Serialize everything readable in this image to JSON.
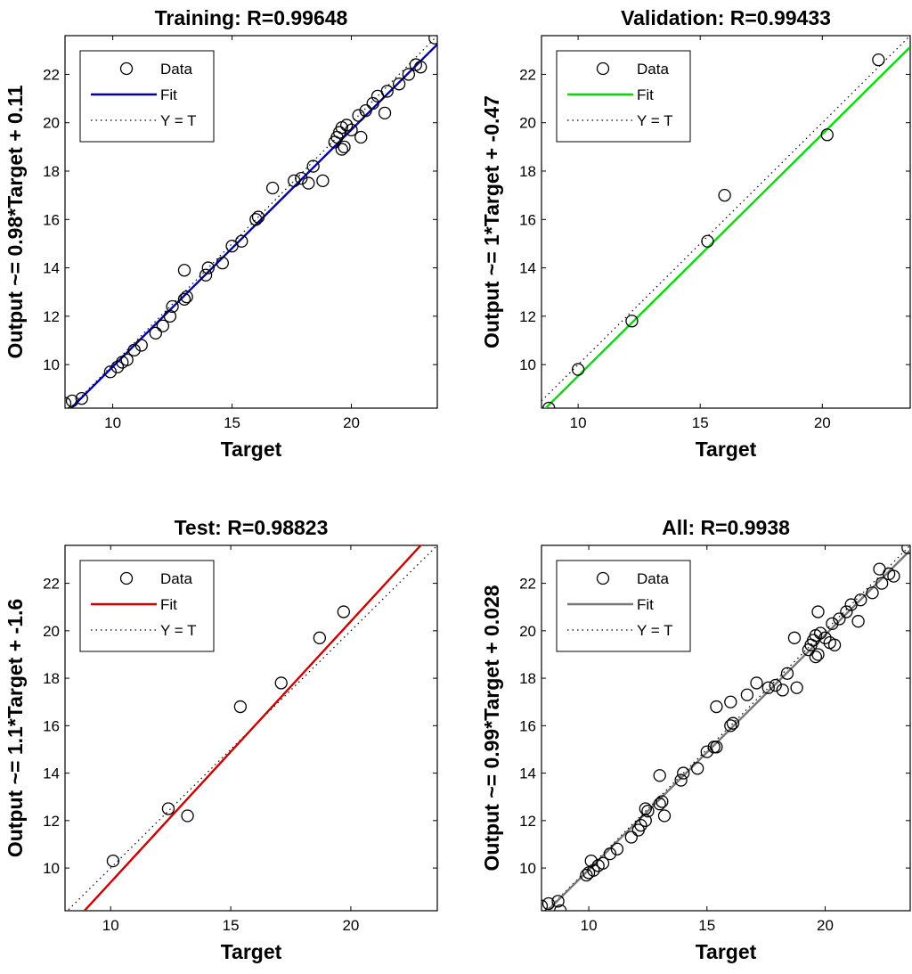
{
  "figure": {
    "colors": {
      "background": "#ffffff",
      "axes": "#000000",
      "marker": "#000000"
    },
    "legend": {
      "data_label": "Data",
      "fit_label": "Fit",
      "identity_label": "Y = T"
    }
  },
  "chart_data": [
    {
      "type": "scatter",
      "title": "Training: R=0.99648",
      "xlabel": "Target",
      "ylabel": "Output ~= 0.98*Target + 0.11",
      "xlim": [
        8,
        23.6
      ],
      "ylim": [
        8.2,
        23.6
      ],
      "xticks": [
        10,
        15,
        20
      ],
      "yticks": [
        10,
        12,
        14,
        16,
        18,
        20,
        22
      ],
      "fit": {
        "slope": 0.98,
        "intercept": 0.11,
        "color": "#0000aa"
      },
      "legend_position": "top-left",
      "grid": false,
      "points": [
        [
          8.0,
          8.4
        ],
        [
          8.3,
          8.5
        ],
        [
          8.7,
          8.6
        ],
        [
          9.9,
          9.7
        ],
        [
          10.2,
          9.9
        ],
        [
          10.4,
          10.1
        ],
        [
          10.6,
          10.2
        ],
        [
          10.9,
          10.6
        ],
        [
          11.2,
          10.8
        ],
        [
          11.8,
          11.3
        ],
        [
          12.1,
          11.6
        ],
        [
          12.4,
          12.0
        ],
        [
          12.5,
          12.4
        ],
        [
          13.0,
          12.7
        ],
        [
          13.1,
          12.8
        ],
        [
          13.0,
          13.9
        ],
        [
          13.9,
          13.7
        ],
        [
          14.0,
          14.0
        ],
        [
          14.6,
          14.2
        ],
        [
          15.0,
          14.9
        ],
        [
          15.4,
          15.1
        ],
        [
          16.0,
          16.0
        ],
        [
          16.1,
          16.1
        ],
        [
          16.7,
          17.3
        ],
        [
          17.6,
          17.6
        ],
        [
          17.9,
          17.7
        ],
        [
          18.2,
          17.5
        ],
        [
          18.4,
          18.2
        ],
        [
          18.8,
          17.6
        ],
        [
          19.3,
          19.2
        ],
        [
          19.4,
          19.4
        ],
        [
          19.5,
          19.6
        ],
        [
          19.6,
          19.8
        ],
        [
          19.7,
          19.0
        ],
        [
          19.6,
          18.9
        ],
        [
          19.8,
          19.9
        ],
        [
          20.0,
          19.7
        ],
        [
          20.3,
          20.3
        ],
        [
          20.4,
          19.4
        ],
        [
          20.6,
          20.5
        ],
        [
          20.9,
          20.8
        ],
        [
          21.1,
          21.1
        ],
        [
          21.4,
          20.4
        ],
        [
          21.5,
          21.3
        ],
        [
          22.0,
          21.6
        ],
        [
          22.4,
          22.0
        ],
        [
          22.7,
          22.4
        ],
        [
          22.9,
          22.3
        ],
        [
          23.5,
          23.5
        ]
      ]
    },
    {
      "type": "scatter",
      "title": "Validation: R=0.99433",
      "xlabel": "Target",
      "ylabel": "Output ~= 1*Target + -0.47",
      "xlim": [
        8.5,
        23.6
      ],
      "ylim": [
        8.2,
        23.6
      ],
      "xticks": [
        10,
        15,
        20
      ],
      "yticks": [
        10,
        12,
        14,
        16,
        18,
        20,
        22
      ],
      "fit": {
        "slope": 1.0,
        "intercept": -0.47,
        "color": "#00dd00"
      },
      "legend_position": "top-left",
      "grid": false,
      "points": [
        [
          8.8,
          8.2
        ],
        [
          10.0,
          9.8
        ],
        [
          12.2,
          11.8
        ],
        [
          15.3,
          15.1
        ],
        [
          16.0,
          17.0
        ],
        [
          20.2,
          19.5
        ],
        [
          22.3,
          22.6
        ]
      ]
    },
    {
      "type": "scatter",
      "title": "Test: R=0.98823",
      "xlabel": "Target",
      "ylabel": "Output ~= 1.1*Target + -1.6",
      "xlim": [
        8.1,
        23.6
      ],
      "ylim": [
        8.2,
        23.6
      ],
      "xticks": [
        10,
        15,
        20
      ],
      "yticks": [
        10,
        12,
        14,
        16,
        18,
        20,
        22
      ],
      "fit": {
        "slope": 1.1,
        "intercept": -1.6,
        "color": "#cc0000"
      },
      "legend_position": "top-left",
      "grid": false,
      "points": [
        [
          10.1,
          10.3
        ],
        [
          12.4,
          12.5
        ],
        [
          13.2,
          12.2
        ],
        [
          15.4,
          16.8
        ],
        [
          17.1,
          17.8
        ],
        [
          18.7,
          19.7
        ],
        [
          19.7,
          20.8
        ]
      ]
    },
    {
      "type": "scatter",
      "title": "All: R=0.9938",
      "xlabel": "Target",
      "ylabel": "Output ~= 0.99*Target + 0.028",
      "xlim": [
        8,
        23.6
      ],
      "ylim": [
        8.2,
        23.6
      ],
      "xticks": [
        10,
        15,
        20
      ],
      "yticks": [
        10,
        12,
        14,
        16,
        18,
        20,
        22
      ],
      "fit": {
        "slope": 0.99,
        "intercept": 0.028,
        "color": "#777777"
      },
      "legend_position": "top-left",
      "grid": false,
      "points": [
        [
          8.0,
          8.4
        ],
        [
          8.3,
          8.5
        ],
        [
          8.7,
          8.6
        ],
        [
          8.8,
          8.2
        ],
        [
          9.9,
          9.7
        ],
        [
          10.0,
          9.8
        ],
        [
          10.1,
          10.3
        ],
        [
          10.2,
          9.9
        ],
        [
          10.4,
          10.1
        ],
        [
          10.6,
          10.2
        ],
        [
          10.9,
          10.6
        ],
        [
          11.2,
          10.8
        ],
        [
          11.8,
          11.3
        ],
        [
          12.1,
          11.6
        ],
        [
          12.2,
          11.8
        ],
        [
          12.4,
          12.0
        ],
        [
          12.4,
          12.5
        ],
        [
          12.5,
          12.4
        ],
        [
          13.0,
          12.7
        ],
        [
          13.1,
          12.8
        ],
        [
          13.2,
          12.2
        ],
        [
          13.0,
          13.9
        ],
        [
          13.9,
          13.7
        ],
        [
          14.0,
          14.0
        ],
        [
          14.6,
          14.2
        ],
        [
          15.0,
          14.9
        ],
        [
          15.3,
          15.1
        ],
        [
          15.4,
          15.1
        ],
        [
          15.4,
          16.8
        ],
        [
          16.0,
          16.0
        ],
        [
          16.0,
          17.0
        ],
        [
          16.1,
          16.1
        ],
        [
          16.7,
          17.3
        ],
        [
          17.1,
          17.8
        ],
        [
          17.6,
          17.6
        ],
        [
          17.9,
          17.7
        ],
        [
          18.2,
          17.5
        ],
        [
          18.4,
          18.2
        ],
        [
          18.7,
          19.7
        ],
        [
          18.8,
          17.6
        ],
        [
          19.3,
          19.2
        ],
        [
          19.4,
          19.4
        ],
        [
          19.5,
          19.6
        ],
        [
          19.6,
          19.8
        ],
        [
          19.6,
          18.9
        ],
        [
          19.7,
          19.0
        ],
        [
          19.7,
          20.8
        ],
        [
          19.8,
          19.9
        ],
        [
          20.0,
          19.7
        ],
        [
          20.2,
          19.5
        ],
        [
          20.3,
          20.3
        ],
        [
          20.4,
          19.4
        ],
        [
          20.6,
          20.5
        ],
        [
          20.9,
          20.8
        ],
        [
          21.1,
          21.1
        ],
        [
          21.4,
          20.4
        ],
        [
          21.5,
          21.3
        ],
        [
          22.0,
          21.6
        ],
        [
          22.3,
          22.6
        ],
        [
          22.4,
          22.0
        ],
        [
          22.7,
          22.4
        ],
        [
          22.9,
          22.3
        ],
        [
          23.5,
          23.5
        ]
      ]
    }
  ]
}
